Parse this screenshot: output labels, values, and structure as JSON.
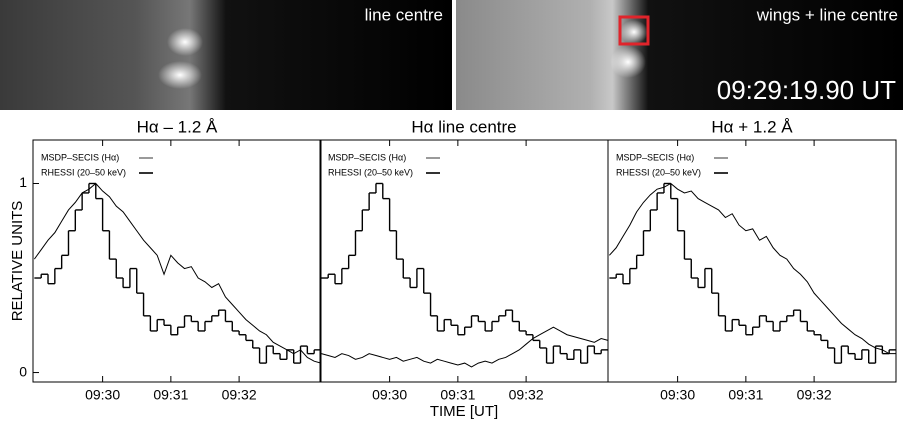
{
  "images": [
    {
      "label": "line centre"
    },
    {
      "label": "wings + line centre",
      "timestamp": "09:29:19.90 UT"
    }
  ],
  "chart_data": [
    {
      "type": "line",
      "title": "Hα – 1.2 Å",
      "ylabel": "RELATIVE  UNITS",
      "xlim": [
        28.98,
        33.2
      ],
      "ylim": [
        -0.05,
        1.23
      ],
      "xticks": [
        {
          "value": 30,
          "label": "09:30"
        },
        {
          "value": 31,
          "label": "09:31"
        },
        {
          "value": 32,
          "label": "09:32"
        }
      ],
      "yticks": [
        0,
        1
      ],
      "legend": "upper left",
      "series": [
        {
          "name": "MSDP–SECIS (Hα)",
          "style": "line",
          "color": "#000000",
          "x": [
            29.0,
            29.1,
            29.2,
            29.3,
            29.4,
            29.5,
            29.6,
            29.7,
            29.8,
            29.9,
            30.0,
            30.1,
            30.2,
            30.3,
            30.4,
            30.5,
            30.6,
            30.7,
            30.8,
            30.9,
            31.0,
            31.1,
            31.2,
            31.3,
            31.4,
            31.5,
            31.6,
            31.7,
            31.8,
            31.9,
            32.0,
            32.1,
            32.2,
            32.3,
            32.4,
            32.5,
            32.6,
            32.7,
            32.8,
            32.9,
            33.0,
            33.1,
            33.2
          ],
          "values": [
            0.6,
            0.65,
            0.7,
            0.74,
            0.8,
            0.86,
            0.9,
            0.95,
            0.97,
            1.0,
            0.96,
            0.93,
            0.88,
            0.85,
            0.8,
            0.75,
            0.7,
            0.66,
            0.62,
            0.52,
            0.62,
            0.58,
            0.55,
            0.56,
            0.5,
            0.48,
            0.45,
            0.47,
            0.4,
            0.36,
            0.32,
            0.28,
            0.25,
            0.22,
            0.2,
            0.16,
            0.14,
            0.12,
            0.1,
            0.12,
            0.08,
            0.06,
            0.05
          ]
        },
        {
          "name": "RHESSI (20–50 keV)",
          "style": "step",
          "color": "#000000",
          "x": [
            29.0,
            29.1,
            29.2,
            29.3,
            29.4,
            29.5,
            29.6,
            29.7,
            29.8,
            29.9,
            30.0,
            30.1,
            30.2,
            30.3,
            30.4,
            30.5,
            30.6,
            30.7,
            30.8,
            30.9,
            31.0,
            31.1,
            31.2,
            31.3,
            31.4,
            31.5,
            31.6,
            31.7,
            31.8,
            31.9,
            32.0,
            32.1,
            32.2,
            32.3,
            32.4,
            32.5,
            32.6,
            32.7,
            32.8,
            32.9,
            33.0,
            33.1
          ],
          "values": [
            0.5,
            0.52,
            0.47,
            0.55,
            0.62,
            0.75,
            0.86,
            0.95,
            1.0,
            0.92,
            0.75,
            0.6,
            0.5,
            0.45,
            0.55,
            0.42,
            0.3,
            0.22,
            0.28,
            0.25,
            0.2,
            0.24,
            0.3,
            0.27,
            0.22,
            0.27,
            0.3,
            0.33,
            0.27,
            0.22,
            0.2,
            0.17,
            0.13,
            0.05,
            0.14,
            0.1,
            0.07,
            0.12,
            0.05,
            0.14,
            0.1,
            0.12
          ]
        }
      ]
    },
    {
      "type": "line",
      "title": "Hα line centre",
      "xlabel": "TIME [UT]",
      "xlim": [
        28.98,
        33.2
      ],
      "ylim": [
        -0.05,
        1.23
      ],
      "xticks": [
        {
          "value": 30,
          "label": "09:30"
        },
        {
          "value": 31,
          "label": "09:31"
        },
        {
          "value": 32,
          "label": "09:32"
        }
      ],
      "legend": "upper left",
      "series": [
        {
          "name": "MSDP–SECIS (Hα)",
          "style": "line",
          "color": "#000000",
          "x": [
            29.0,
            29.1,
            29.2,
            29.3,
            29.4,
            29.5,
            29.6,
            29.7,
            29.8,
            29.9,
            30.0,
            30.1,
            30.2,
            30.3,
            30.4,
            30.5,
            30.6,
            30.7,
            30.8,
            30.9,
            31.0,
            31.1,
            31.2,
            31.3,
            31.4,
            31.5,
            31.6,
            31.7,
            31.8,
            31.9,
            32.0,
            32.1,
            32.2,
            32.3,
            32.4,
            32.5,
            32.6,
            32.7,
            32.8,
            32.9,
            33.0,
            33.1,
            33.2
          ],
          "values": [
            0.1,
            0.09,
            0.08,
            0.1,
            0.09,
            0.07,
            0.08,
            0.1,
            0.09,
            0.08,
            0.07,
            0.08,
            0.06,
            0.07,
            0.08,
            0.06,
            0.05,
            0.07,
            0.06,
            0.05,
            0.04,
            0.05,
            0.03,
            0.05,
            0.06,
            0.05,
            0.07,
            0.08,
            0.1,
            0.12,
            0.15,
            0.18,
            0.2,
            0.22,
            0.24,
            0.22,
            0.2,
            0.19,
            0.18,
            0.17,
            0.16,
            0.18,
            0.17
          ]
        },
        {
          "name": "RHESSI (20–50 keV)",
          "style": "step",
          "color": "#000000",
          "x": [
            29.0,
            29.1,
            29.2,
            29.3,
            29.4,
            29.5,
            29.6,
            29.7,
            29.8,
            29.9,
            30.0,
            30.1,
            30.2,
            30.3,
            30.4,
            30.5,
            30.6,
            30.7,
            30.8,
            30.9,
            31.0,
            31.1,
            31.2,
            31.3,
            31.4,
            31.5,
            31.6,
            31.7,
            31.8,
            31.9,
            32.0,
            32.1,
            32.2,
            32.3,
            32.4,
            32.5,
            32.6,
            32.7,
            32.8,
            32.9,
            33.0,
            33.1
          ],
          "values": [
            0.5,
            0.52,
            0.47,
            0.55,
            0.62,
            0.75,
            0.86,
            0.95,
            1.0,
            0.92,
            0.75,
            0.6,
            0.5,
            0.45,
            0.55,
            0.42,
            0.3,
            0.22,
            0.28,
            0.25,
            0.2,
            0.24,
            0.3,
            0.27,
            0.22,
            0.27,
            0.3,
            0.33,
            0.27,
            0.22,
            0.2,
            0.17,
            0.13,
            0.05,
            0.14,
            0.1,
            0.07,
            0.12,
            0.05,
            0.14,
            0.1,
            0.12
          ]
        }
      ]
    },
    {
      "type": "line",
      "title": "Hα + 1.2 Å",
      "xlim": [
        28.98,
        33.2
      ],
      "ylim": [
        -0.05,
        1.23
      ],
      "xticks": [
        {
          "value": 30,
          "label": "09:30"
        },
        {
          "value": 31,
          "label": "09:31"
        },
        {
          "value": 32,
          "label": "09:32"
        }
      ],
      "legend": "upper left",
      "series": [
        {
          "name": "MSDP–SECIS (Hα)",
          "style": "line",
          "color": "#000000",
          "x": [
            29.0,
            29.1,
            29.2,
            29.3,
            29.4,
            29.5,
            29.6,
            29.7,
            29.8,
            29.9,
            30.0,
            30.1,
            30.2,
            30.3,
            30.4,
            30.5,
            30.6,
            30.7,
            30.8,
            30.9,
            31.0,
            31.1,
            31.2,
            31.3,
            31.4,
            31.5,
            31.6,
            31.7,
            31.8,
            31.9,
            32.0,
            32.1,
            32.2,
            32.3,
            32.4,
            32.5,
            32.6,
            32.7,
            32.8,
            32.9,
            33.0,
            33.1,
            33.2
          ],
          "values": [
            0.62,
            0.66,
            0.72,
            0.78,
            0.85,
            0.9,
            0.94,
            0.97,
            0.98,
            1.0,
            0.97,
            0.95,
            0.96,
            0.92,
            0.9,
            0.88,
            0.86,
            0.82,
            0.84,
            0.78,
            0.75,
            0.76,
            0.7,
            0.72,
            0.66,
            0.62,
            0.6,
            0.55,
            0.52,
            0.48,
            0.42,
            0.38,
            0.34,
            0.3,
            0.26,
            0.23,
            0.2,
            0.18,
            0.15,
            0.13,
            0.12,
            0.1,
            0.1
          ]
        },
        {
          "name": "RHESSI (20–50 keV)",
          "style": "step",
          "color": "#000000",
          "x": [
            29.0,
            29.1,
            29.2,
            29.3,
            29.4,
            29.5,
            29.6,
            29.7,
            29.8,
            29.9,
            30.0,
            30.1,
            30.2,
            30.3,
            30.4,
            30.5,
            30.6,
            30.7,
            30.8,
            30.9,
            31.0,
            31.1,
            31.2,
            31.3,
            31.4,
            31.5,
            31.6,
            31.7,
            31.8,
            31.9,
            32.0,
            32.1,
            32.2,
            32.3,
            32.4,
            32.5,
            32.6,
            32.7,
            32.8,
            32.9,
            33.0,
            33.1
          ],
          "values": [
            0.5,
            0.52,
            0.47,
            0.55,
            0.62,
            0.75,
            0.86,
            0.95,
            1.0,
            0.92,
            0.75,
            0.6,
            0.5,
            0.45,
            0.55,
            0.42,
            0.3,
            0.22,
            0.28,
            0.25,
            0.2,
            0.24,
            0.3,
            0.27,
            0.22,
            0.27,
            0.3,
            0.33,
            0.27,
            0.22,
            0.2,
            0.17,
            0.13,
            0.05,
            0.14,
            0.1,
            0.07,
            0.12,
            0.05,
            0.14,
            0.1,
            0.12
          ]
        }
      ]
    }
  ]
}
